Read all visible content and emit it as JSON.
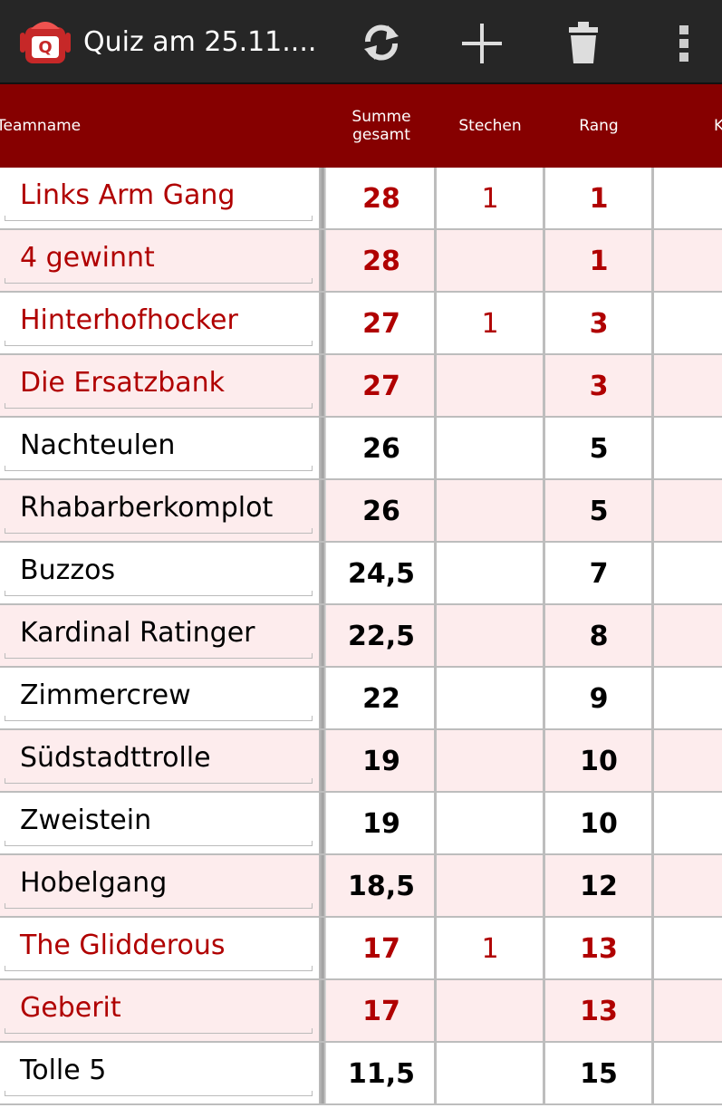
{
  "app_bar": {
    "title": "Quiz am 25.11...."
  },
  "table": {
    "headers": [
      "Teamname",
      "Summe gesamt",
      "Stechen",
      "Rang",
      "K"
    ],
    "rows": [
      {
        "name": "Links Arm Gang",
        "sum": "28",
        "stechen": "1",
        "rang": "1",
        "text_color": "#b00000"
      },
      {
        "name": "4 gewinnt",
        "sum": "28",
        "stechen": null,
        "rang": "1",
        "text_color": "#b00000"
      },
      {
        "name": "Hinterhofhocker",
        "sum": "27",
        "stechen": "1",
        "rang": "3",
        "text_color": "#b00000"
      },
      {
        "name": "Die Ersatzbank",
        "sum": "27",
        "stechen": null,
        "rang": "3",
        "text_color": "#b00000"
      },
      {
        "name": "Nachteulen",
        "sum": "26",
        "stechen": null,
        "rang": "5",
        "text_color": "#000000"
      },
      {
        "name": "Rhabarberkomplot",
        "sum": "26",
        "stechen": null,
        "rang": "5",
        "text_color": "#000000"
      },
      {
        "name": "Buzzos",
        "sum": "24,5",
        "stechen": null,
        "rang": "7",
        "text_color": "#000000"
      },
      {
        "name": "Kardinal Ratinger",
        "sum": "22,5",
        "stechen": null,
        "rang": "8",
        "text_color": "#000000"
      },
      {
        "name": "Zimmercrew",
        "sum": "22",
        "stechen": null,
        "rang": "9",
        "text_color": "#000000"
      },
      {
        "name": "Südstadttrolle",
        "sum": "19",
        "stechen": null,
        "rang": "10",
        "text_color": "#000000"
      },
      {
        "name": "Zweistein",
        "sum": "19",
        "stechen": null,
        "rang": "10",
        "text_color": "#000000"
      },
      {
        "name": "Hobelgang",
        "sum": "18,5",
        "stechen": null,
        "rang": "12",
        "text_color": "#000000"
      },
      {
        "name": "The Glidderous",
        "sum": "17",
        "stechen": "1",
        "rang": "13",
        "text_color": "#b00000"
      },
      {
        "name": "Geberit",
        "sum": "17",
        "stechen": null,
        "rang": "13",
        "text_color": "#b00000"
      },
      {
        "name": "Tolle 5",
        "sum": "11,5",
        "stechen": null,
        "rang": "15",
        "text_color": "#000000"
      }
    ]
  }
}
